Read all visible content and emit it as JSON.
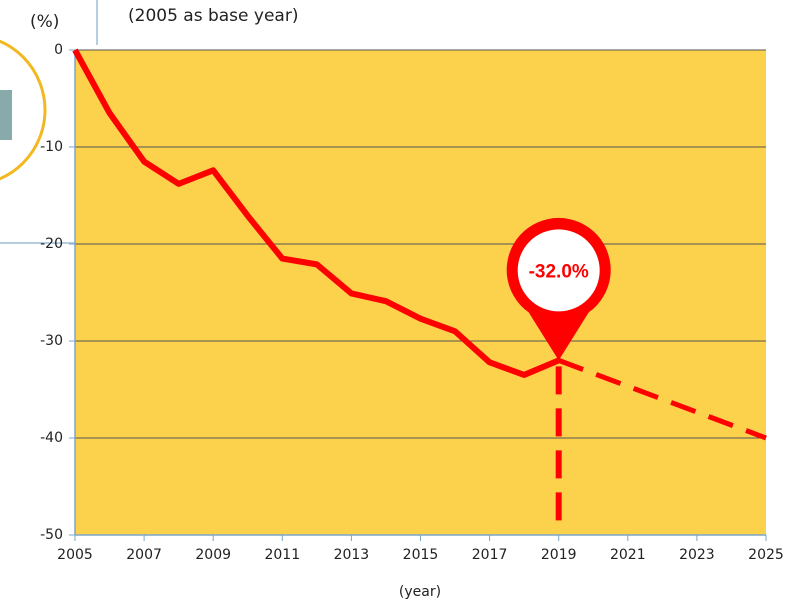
{
  "chart_data": {
    "type": "line",
    "subtitle": "(2005 as base year)",
    "y_unit_label": "(%)",
    "x_label": "(year)",
    "x": [
      2005,
      2006,
      2007,
      2008,
      2009,
      2010,
      2011,
      2012,
      2013,
      2014,
      2015,
      2016,
      2017,
      2018,
      2019
    ],
    "series": [
      {
        "color": "#ff0000",
        "values": [
          0,
          -6.5,
          -11.5,
          -13.8,
          -12.4,
          -17.1,
          -21.5,
          -22.1,
          -25.1,
          -25.9,
          -27.7,
          -29.0,
          -32.2,
          -33.5,
          -32.0
        ]
      }
    ],
    "projection": {
      "color": "#ff0000",
      "x": [
        2019,
        2025
      ],
      "values": [
        -32.0,
        -40.0
      ]
    },
    "annotation": {
      "x": 2019,
      "value": -32.0,
      "label": "-32.0%"
    },
    "xlim": [
      2005,
      2025
    ],
    "xticks": [
      2005,
      2007,
      2009,
      2011,
      2013,
      2015,
      2017,
      2019,
      2021,
      2023,
      2025
    ],
    "ylim": [
      -50,
      0
    ],
    "yticks": [
      0,
      -10,
      -20,
      -30,
      -40,
      -50
    ],
    "plot_color": "#fcd14b",
    "grid": true
  }
}
